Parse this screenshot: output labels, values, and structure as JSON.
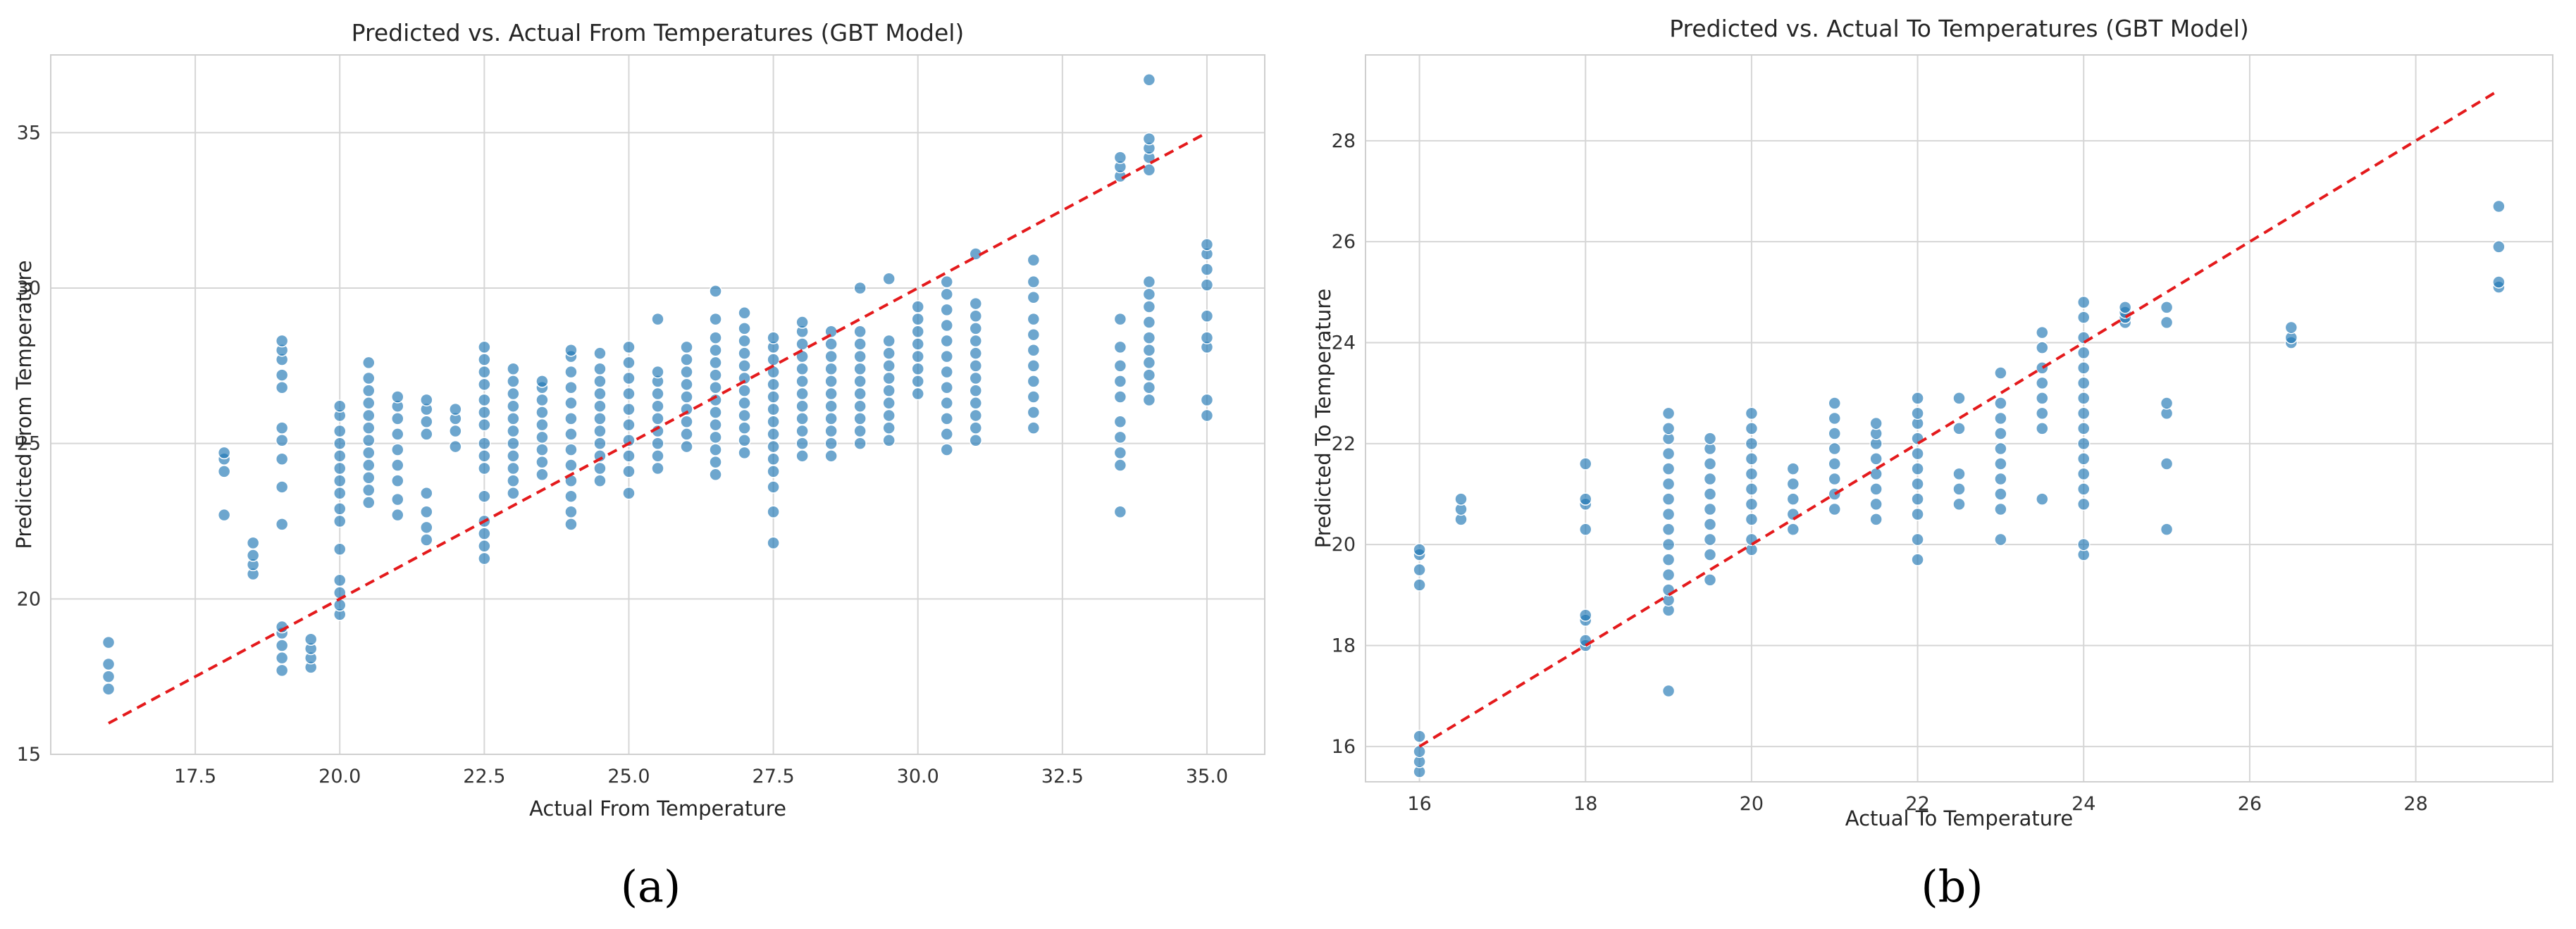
{
  "chart_data": [
    {
      "type": "scatter",
      "title": "Predicted vs. Actual From Temperatures (GBT Model)",
      "xlabel": "Actual From Temperature",
      "ylabel": "Predicted From Temperature",
      "xlim": [
        15.0,
        36.0
      ],
      "ylim": [
        15.0,
        37.5
      ],
      "xticks": [
        17.5,
        20.0,
        22.5,
        25.0,
        27.5,
        30.0,
        32.5,
        35.0
      ],
      "xtick_labels": [
        "17.5",
        "20.0",
        "22.5",
        "25.0",
        "27.5",
        "30.0",
        "32.5",
        "35.0"
      ],
      "yticks": [
        15,
        20,
        25,
        30,
        35
      ],
      "ytick_labels": [
        "15",
        "20",
        "25",
        "30",
        "35"
      ],
      "grid": true,
      "point_color": "#1f77b4",
      "reference_line": {
        "style": "dashed",
        "color": "#e41a1c",
        "from": [
          16.0,
          16.0
        ],
        "to": [
          35.0,
          35.0
        ]
      },
      "caption": "(a)",
      "groups": [
        {
          "x": 16.0,
          "y_values": [
            17.1,
            17.5,
            17.9,
            18.6
          ]
        },
        {
          "x": 18.0,
          "y_values": [
            22.7,
            24.1,
            24.5,
            24.7
          ]
        },
        {
          "x": 18.5,
          "y_values": [
            20.8,
            21.1,
            21.4,
            21.8
          ]
        },
        {
          "x": 19.0,
          "y_values": [
            17.7,
            18.1,
            18.5,
            18.9,
            19.1,
            22.4,
            23.6,
            24.5,
            25.1,
            25.5,
            26.8,
            27.2,
            27.7,
            28.0,
            28.3
          ]
        },
        {
          "x": 19.5,
          "y_values": [
            17.8,
            18.1,
            18.4,
            18.7
          ]
        },
        {
          "x": 20.0,
          "y_values": [
            19.5,
            19.8,
            20.2,
            20.6,
            21.6,
            22.5,
            22.9,
            23.4,
            23.8,
            24.2,
            24.6,
            25.0,
            25.4,
            25.9,
            26.2
          ]
        },
        {
          "x": 20.5,
          "y_values": [
            23.1,
            23.5,
            23.9,
            24.3,
            24.7,
            25.1,
            25.5,
            25.9,
            26.3,
            26.7,
            27.1,
            27.6
          ]
        },
        {
          "x": 21.0,
          "y_values": [
            22.7,
            23.2,
            23.8,
            24.3,
            24.8,
            25.3,
            25.8,
            26.2,
            26.5
          ]
        },
        {
          "x": 21.5,
          "y_values": [
            21.9,
            22.3,
            22.8,
            23.4,
            25.3,
            25.7,
            26.1,
            26.4
          ]
        },
        {
          "x": 22.0,
          "y_values": [
            24.9,
            25.4,
            25.8,
            26.1
          ]
        },
        {
          "x": 22.5,
          "y_values": [
            21.3,
            21.7,
            22.1,
            22.5,
            23.3,
            24.2,
            24.6,
            25.0,
            25.6,
            26.0,
            26.4,
            26.9,
            27.3,
            27.7,
            28.1
          ]
        },
        {
          "x": 23.0,
          "y_values": [
            23.4,
            23.8,
            24.2,
            24.6,
            25.0,
            25.4,
            25.8,
            26.2,
            26.6,
            27.0,
            27.4
          ]
        },
        {
          "x": 23.5,
          "y_values": [
            24.0,
            24.4,
            24.8,
            25.2,
            25.6,
            26.0,
            26.4,
            26.8,
            27.0
          ]
        },
        {
          "x": 24.0,
          "y_values": [
            22.4,
            22.8,
            23.3,
            23.8,
            24.3,
            24.8,
            25.3,
            25.8,
            26.3,
            26.8,
            27.3,
            27.8,
            28.0
          ]
        },
        {
          "x": 24.5,
          "y_values": [
            23.8,
            24.2,
            24.6,
            25.0,
            25.4,
            25.8,
            26.2,
            26.6,
            27.0,
            27.4,
            27.9
          ]
        },
        {
          "x": 25.0,
          "y_values": [
            23.4,
            24.1,
            24.6,
            25.1,
            25.6,
            26.1,
            26.6,
            27.1,
            27.6,
            28.1
          ]
        },
        {
          "x": 25.5,
          "y_values": [
            24.2,
            24.6,
            25.0,
            25.4,
            25.8,
            26.2,
            26.6,
            27.0,
            27.3,
            29.0
          ]
        },
        {
          "x": 26.0,
          "y_values": [
            24.9,
            25.3,
            25.7,
            26.1,
            26.5,
            26.9,
            27.3,
            27.7,
            28.1
          ]
        },
        {
          "x": 26.5,
          "y_values": [
            24.0,
            24.4,
            24.8,
            25.2,
            25.6,
            26.0,
            26.4,
            26.8,
            27.2,
            27.6,
            28.0,
            28.4,
            29.0,
            29.9
          ]
        },
        {
          "x": 27.0,
          "y_values": [
            24.7,
            25.1,
            25.5,
            25.9,
            26.3,
            26.7,
            27.1,
            27.5,
            27.9,
            28.3,
            28.7,
            29.2
          ]
        },
        {
          "x": 27.5,
          "y_values": [
            21.8,
            22.8,
            23.6,
            24.1,
            24.5,
            24.9,
            25.3,
            25.7,
            26.1,
            26.5,
            26.9,
            27.3,
            27.7,
            28.1,
            28.4
          ]
        },
        {
          "x": 28.0,
          "y_values": [
            24.6,
            25.0,
            25.4,
            25.8,
            26.2,
            26.6,
            27.0,
            27.4,
            27.8,
            28.2,
            28.6,
            28.9
          ]
        },
        {
          "x": 28.5,
          "y_values": [
            24.6,
            25.0,
            25.4,
            25.8,
            26.2,
            26.6,
            27.0,
            27.4,
            27.8,
            28.2,
            28.6
          ]
        },
        {
          "x": 29.0,
          "y_values": [
            25.0,
            25.4,
            25.8,
            26.2,
            26.6,
            27.0,
            27.4,
            27.8,
            28.2,
            28.6,
            30.0
          ]
        },
        {
          "x": 29.5,
          "y_values": [
            25.1,
            25.5,
            25.9,
            26.3,
            26.7,
            27.1,
            27.5,
            27.9,
            28.3,
            30.3
          ]
        },
        {
          "x": 30.0,
          "y_values": [
            26.6,
            27.0,
            27.4,
            27.8,
            28.2,
            28.6,
            29.0,
            29.4
          ]
        },
        {
          "x": 30.5,
          "y_values": [
            24.8,
            25.3,
            25.8,
            26.3,
            26.8,
            27.3,
            27.8,
            28.3,
            28.8,
            29.3,
            29.8,
            30.2
          ]
        },
        {
          "x": 31.0,
          "y_values": [
            25.1,
            25.5,
            25.9,
            26.3,
            26.7,
            27.1,
            27.5,
            27.9,
            28.3,
            28.7,
            29.1,
            29.5,
            31.1
          ]
        },
        {
          "x": 32.0,
          "y_values": [
            25.5,
            26.0,
            26.5,
            27.0,
            27.5,
            28.0,
            28.5,
            29.0,
            29.7,
            30.2,
            30.9
          ]
        },
        {
          "x": 33.5,
          "y_values": [
            22.8,
            24.3,
            24.7,
            25.2,
            25.7,
            26.5,
            27.0,
            27.5,
            28.1,
            29.0,
            33.6,
            33.9,
            34.2
          ]
        },
        {
          "x": 34.0,
          "y_values": [
            26.4,
            26.8,
            27.2,
            27.6,
            28.0,
            28.4,
            28.9,
            29.4,
            29.8,
            30.2,
            33.8,
            34.2,
            34.5,
            34.8,
            36.7
          ]
        },
        {
          "x": 35.0,
          "y_values": [
            25.9,
            26.4,
            28.1,
            28.4,
            29.1,
            30.1,
            30.6,
            31.1,
            31.4
          ]
        }
      ]
    },
    {
      "type": "scatter",
      "title": "Predicted vs. Actual To Temperatures (GBT Model)",
      "xlabel": "Actual To Temperature",
      "ylabel": "Predicted To Temperature",
      "xlim": [
        15.35,
        29.65
      ],
      "ylim": [
        15.3,
        29.7
      ],
      "xticks": [
        16,
        18,
        20,
        22,
        24,
        26,
        28
      ],
      "xtick_labels": [
        "16",
        "18",
        "20",
        "22",
        "24",
        "26",
        "28"
      ],
      "yticks": [
        16,
        18,
        20,
        22,
        24,
        26,
        28
      ],
      "ytick_labels": [
        "16",
        "18",
        "20",
        "22",
        "24",
        "26",
        "28"
      ],
      "grid": true,
      "point_color": "#1f77b4",
      "reference_line": {
        "style": "dashed",
        "color": "#e41a1c",
        "from": [
          16.0,
          16.0
        ],
        "to": [
          29.0,
          29.0
        ]
      },
      "caption": "(b)",
      "groups": [
        {
          "x": 16.0,
          "y_values": [
            15.5,
            15.7,
            15.9,
            16.2,
            19.2,
            19.5,
            19.8,
            19.9
          ]
        },
        {
          "x": 16.5,
          "y_values": [
            20.5,
            20.7,
            20.9
          ]
        },
        {
          "x": 18.0,
          "y_values": [
            18.0,
            18.1,
            18.5,
            18.6,
            20.3,
            20.8,
            20.9,
            21.6
          ]
        },
        {
          "x": 19.0,
          "y_values": [
            17.1,
            18.7,
            18.9,
            19.1,
            19.4,
            19.7,
            20.0,
            20.3,
            20.6,
            20.9,
            21.2,
            21.5,
            21.8,
            22.1,
            22.3,
            22.6
          ]
        },
        {
          "x": 19.5,
          "y_values": [
            19.3,
            19.8,
            20.1,
            20.4,
            20.7,
            21.0,
            21.3,
            21.6,
            21.9,
            22.1
          ]
        },
        {
          "x": 20.0,
          "y_values": [
            19.9,
            20.1,
            20.5,
            20.8,
            21.1,
            21.4,
            21.7,
            22.0,
            22.3,
            22.6
          ]
        },
        {
          "x": 20.5,
          "y_values": [
            20.3,
            20.6,
            20.9,
            21.2,
            21.5
          ]
        },
        {
          "x": 21.0,
          "y_values": [
            20.7,
            21.0,
            21.3,
            21.6,
            21.9,
            22.2,
            22.5,
            22.8
          ]
        },
        {
          "x": 21.5,
          "y_values": [
            20.5,
            20.8,
            21.1,
            21.4,
            21.7,
            22.0,
            22.2,
            22.4
          ]
        },
        {
          "x": 22.0,
          "y_values": [
            19.7,
            20.1,
            20.6,
            20.9,
            21.2,
            21.5,
            21.8,
            22.1,
            22.4,
            22.6,
            22.9
          ]
        },
        {
          "x": 22.5,
          "y_values": [
            20.8,
            21.1,
            21.4,
            22.3,
            22.9
          ]
        },
        {
          "x": 23.0,
          "y_values": [
            20.1,
            20.7,
            21.0,
            21.3,
            21.6,
            21.9,
            22.2,
            22.5,
            22.8,
            23.4
          ]
        },
        {
          "x": 23.5,
          "y_values": [
            20.9,
            22.3,
            22.6,
            22.9,
            23.2,
            23.5,
            23.9,
            24.2
          ]
        },
        {
          "x": 24.0,
          "y_values": [
            19.8,
            20.0,
            20.8,
            21.1,
            21.4,
            21.7,
            22.0,
            22.3,
            22.6,
            22.9,
            23.2,
            23.5,
            23.8,
            24.1,
            24.5,
            24.8
          ]
        },
        {
          "x": 24.5,
          "y_values": [
            24.4,
            24.5,
            24.6,
            24.7
          ]
        },
        {
          "x": 25.0,
          "y_values": [
            20.3,
            21.6,
            22.6,
            22.8,
            24.4,
            24.7
          ]
        },
        {
          "x": 26.5,
          "y_values": [
            24.0,
            24.1,
            24.3
          ]
        },
        {
          "x": 29.0,
          "y_values": [
            25.1,
            25.2,
            25.9,
            26.7
          ]
        }
      ]
    }
  ]
}
